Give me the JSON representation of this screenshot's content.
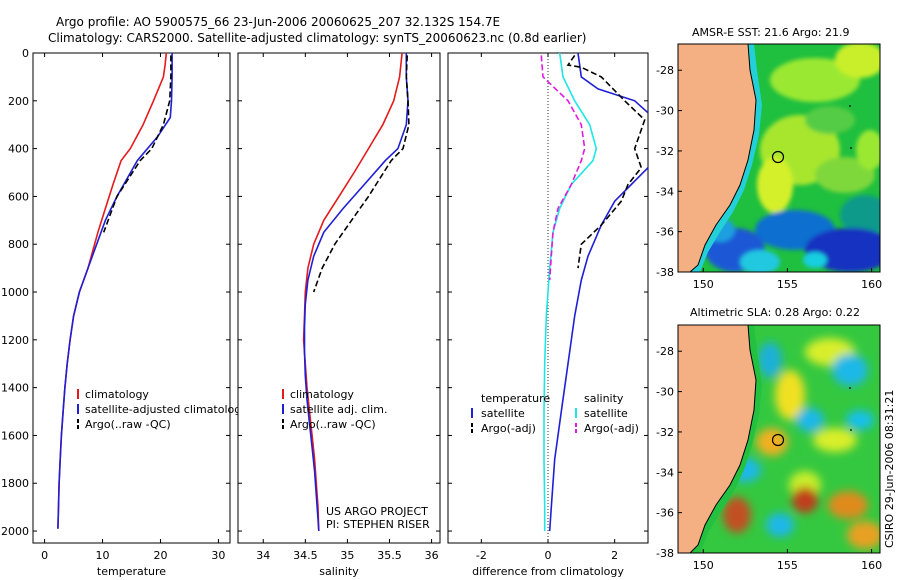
{
  "title_line1": "Argo profile: AO 5900575_66 23-Jun-2006 20060625_207 32.132S 154.7E",
  "title_line2": "Climatology: CARS2000. Satellite-adjusted climatology: synTS_20060623.nc (0.8d earlier)",
  "colors": {
    "climatology": "#e41a1c",
    "satellite": "#1f1fd6",
    "argo": "#000000",
    "argo_adj": "#e01be0",
    "satellite_sal": "#1ee6e6",
    "land": "#f4b083"
  },
  "chart_data": [
    {
      "type": "line",
      "name": "temperature",
      "xlabel": "temperature",
      "ylabel": "",
      "xlim": [
        -2,
        32
      ],
      "ylim": [
        2050,
        0
      ],
      "xticks": [
        0,
        10,
        20,
        30
      ],
      "yticks": [
        0,
        200,
        400,
        600,
        800,
        1000,
        1200,
        1400,
        1600,
        1800,
        2000
      ],
      "legend": [
        "climatology",
        "satellite-adjusted climatology",
        "Argo(..raw -QC)"
      ],
      "legend_position": "lower-right",
      "series": [
        {
          "name": "climatology",
          "color_key": "climatology",
          "dash": false,
          "points": [
            [
              21.0,
              0
            ],
            [
              20.8,
              50
            ],
            [
              20.5,
              100
            ],
            [
              18.8,
              200
            ],
            [
              17.0,
              300
            ],
            [
              14.8,
              400
            ],
            [
              13.2,
              450
            ],
            [
              11.8,
              550
            ],
            [
              10.5,
              650
            ],
            [
              9.2,
              750
            ],
            [
              7.5,
              900
            ],
            [
              6.0,
              1000
            ],
            [
              5.0,
              1100
            ],
            [
              4.4,
              1200
            ],
            [
              3.9,
              1300
            ],
            [
              3.5,
              1400
            ],
            [
              3.2,
              1500
            ],
            [
              2.9,
              1600
            ],
            [
              2.7,
              1700
            ],
            [
              2.5,
              1800
            ],
            [
              2.4,
              1900
            ],
            [
              2.3,
              1990
            ]
          ]
        },
        {
          "name": "satellite-adjusted climatology",
          "color_key": "satellite",
          "dash": false,
          "points": [
            [
              22.0,
              0
            ],
            [
              22.0,
              100
            ],
            [
              21.9,
              200
            ],
            [
              21.7,
              270
            ],
            [
              19.5,
              350
            ],
            [
              16.0,
              450
            ],
            [
              12.5,
              600
            ],
            [
              10.5,
              700
            ],
            [
              9.0,
              800
            ],
            [
              7.5,
              900
            ],
            [
              6.0,
              1000
            ],
            [
              5.0,
              1100
            ],
            [
              4.4,
              1200
            ],
            [
              3.9,
              1300
            ],
            [
              3.5,
              1400
            ],
            [
              3.2,
              1500
            ],
            [
              2.9,
              1600
            ],
            [
              2.7,
              1700
            ],
            [
              2.5,
              1800
            ],
            [
              2.4,
              1900
            ],
            [
              2.3,
              1990
            ]
          ]
        },
        {
          "name": "Argo(..raw -QC)",
          "color_key": "argo",
          "dash": true,
          "points": [
            [
              21.8,
              10
            ],
            [
              21.8,
              100
            ],
            [
              21.6,
              200
            ],
            [
              20.5,
              300
            ],
            [
              18.5,
              400
            ],
            [
              16.5,
              450
            ],
            [
              12.5,
              600
            ],
            [
              10.2,
              750
            ]
          ]
        }
      ],
      "annotation": []
    },
    {
      "type": "line",
      "name": "salinity",
      "xlabel": "salinity",
      "ylabel": "",
      "xlim": [
        33.7,
        36.1
      ],
      "ylim": [
        2050,
        0
      ],
      "xticks": [
        34,
        34.5,
        35,
        35.5,
        36
      ],
      "yticks": [],
      "legend": [
        "climatology",
        "satellite adj. clim.",
        "Argo(..raw -QC)"
      ],
      "legend_position": "lower-right",
      "series": [
        {
          "name": "climatology",
          "color_key": "climatology",
          "dash": false,
          "points": [
            [
              35.65,
              0
            ],
            [
              35.62,
              100
            ],
            [
              35.55,
              200
            ],
            [
              35.42,
              300
            ],
            [
              35.25,
              400
            ],
            [
              35.08,
              500
            ],
            [
              34.9,
              600
            ],
            [
              34.72,
              700
            ],
            [
              34.6,
              800
            ],
            [
              34.53,
              900
            ],
            [
              34.5,
              1000
            ],
            [
              34.49,
              1100
            ],
            [
              34.48,
              1200
            ],
            [
              34.5,
              1300
            ],
            [
              34.52,
              1400
            ],
            [
              34.55,
              1500
            ],
            [
              34.58,
              1600
            ],
            [
              34.61,
              1700
            ],
            [
              34.63,
              1800
            ],
            [
              34.65,
              1900
            ],
            [
              34.66,
              2000
            ]
          ]
        },
        {
          "name": "satellite adj. clim.",
          "color_key": "satellite",
          "dash": false,
          "points": [
            [
              35.7,
              0
            ],
            [
              35.7,
              100
            ],
            [
              35.72,
              200
            ],
            [
              35.7,
              300
            ],
            [
              35.6,
              400
            ],
            [
              35.45,
              450
            ],
            [
              35.2,
              550
            ],
            [
              34.95,
              650
            ],
            [
              34.72,
              750
            ],
            [
              34.6,
              850
            ],
            [
              34.53,
              950
            ],
            [
              34.5,
              1050
            ],
            [
              34.49,
              1150
            ],
            [
              34.49,
              1250
            ],
            [
              34.5,
              1350
            ],
            [
              34.52,
              1450
            ],
            [
              34.55,
              1550
            ],
            [
              34.58,
              1650
            ],
            [
              34.61,
              1750
            ],
            [
              34.63,
              1850
            ],
            [
              34.65,
              1950
            ],
            [
              34.66,
              2000
            ]
          ]
        },
        {
          "name": "Argo(..raw -QC)",
          "color_key": "argo",
          "dash": true,
          "points": [
            [
              35.71,
              10
            ],
            [
              35.7,
              100
            ],
            [
              35.72,
              200
            ],
            [
              35.73,
              300
            ],
            [
              35.66,
              400
            ],
            [
              35.52,
              450
            ],
            [
              35.25,
              600
            ],
            [
              35.05,
              700
            ],
            [
              34.85,
              800
            ],
            [
              34.7,
              900
            ],
            [
              34.6,
              1000
            ]
          ]
        }
      ],
      "annotation": [
        "US ARGO PROJECT",
        "PI: STEPHEN RISER"
      ]
    },
    {
      "type": "line",
      "name": "difference",
      "xlabel": "difference from climatology",
      "ylabel": "",
      "xlim": [
        -3,
        3
      ],
      "ylim": [
        2050,
        0
      ],
      "xticks": [
        -2,
        0,
        2
      ],
      "yticks": [],
      "legend_left_title": "temperature",
      "legend_right_title": "salinity",
      "legend_left": [
        "satellite",
        "Argo(-adj)"
      ],
      "legend_right": [
        "satellite",
        "Argo(-adj)"
      ],
      "legend_position": "lower",
      "series": [
        {
          "name": "temperature satellite",
          "color_key": "satellite",
          "dash": false,
          "points": [
            [
              0.9,
              0
            ],
            [
              1.0,
              100
            ],
            [
              1.5,
              150
            ],
            [
              2.6,
              200
            ],
            [
              3.0,
              250
            ]
          ]
        },
        {
          "name": "temperature satellite deep",
          "color_key": "satellite",
          "dash": false,
          "points": [
            [
              3.0,
              480
            ],
            [
              2.5,
              550
            ],
            [
              2.0,
              620
            ],
            [
              1.6,
              720
            ],
            [
              1.2,
              850
            ],
            [
              1.0,
              950
            ],
            [
              0.8,
              1100
            ],
            [
              0.6,
              1300
            ],
            [
              0.4,
              1500
            ],
            [
              0.2,
              1700
            ],
            [
              0.1,
              1900
            ],
            [
              0.05,
              2000
            ]
          ]
        },
        {
          "name": "temperature Argo(-adj)",
          "color_key": "argo",
          "dash": true,
          "points": [
            [
              0.8,
              10
            ],
            [
              0.6,
              50
            ],
            [
              1.0,
              60
            ],
            [
              1.6,
              100
            ],
            [
              2.3,
              200
            ],
            [
              2.9,
              280
            ],
            [
              2.6,
              400
            ],
            [
              2.8,
              480
            ],
            [
              2.4,
              550
            ],
            [
              2.2,
              620
            ],
            [
              1.6,
              720
            ],
            [
              1.0,
              800
            ],
            [
              0.9,
              900
            ]
          ]
        },
        {
          "name": "salinity satellite",
          "color_key": "satellite_sal",
          "dash": false,
          "points": [
            [
              0.35,
              0
            ],
            [
              0.45,
              100
            ],
            [
              0.8,
              200
            ],
            [
              1.25,
              300
            ],
            [
              1.45,
              400
            ],
            [
              1.35,
              450
            ],
            [
              0.7,
              550
            ],
            [
              0.35,
              650
            ],
            [
              0.15,
              750
            ],
            [
              0.05,
              900
            ],
            [
              -0.05,
              1100
            ],
            [
              -0.1,
              1300
            ],
            [
              -0.12,
              1500
            ],
            [
              -0.12,
              1700
            ],
            [
              -0.1,
              1900
            ],
            [
              -0.1,
              2000
            ]
          ]
        },
        {
          "name": "salinity Argo(-adj)",
          "color_key": "argo_adj",
          "dash": true,
          "points": [
            [
              -0.2,
              10
            ],
            [
              -0.15,
              100
            ],
            [
              0.6,
              200
            ],
            [
              1.0,
              300
            ],
            [
              1.1,
              400
            ],
            [
              1.0,
              450
            ],
            [
              0.7,
              550
            ],
            [
              0.3,
              650
            ],
            [
              0.15,
              750
            ],
            [
              0.1,
              850
            ],
            [
              0.05,
              950
            ]
          ]
        }
      ],
      "annotation": []
    }
  ],
  "maps": [
    {
      "title": "AMSR-E SST: 21.6 Argo: 21.9",
      "xticks": [
        "150",
        "155",
        "160"
      ],
      "yticks": [
        "-28",
        "-30",
        "-32",
        "-34",
        "-36",
        "-38"
      ]
    },
    {
      "title": "Altimetric SLA: 0.28 Argo: 0.22",
      "xticks": [
        "150",
        "155",
        "160"
      ],
      "yticks": [
        "-28",
        "-30",
        "-32",
        "-34",
        "-36",
        "-38"
      ]
    }
  ],
  "side_label": "CSIRO 29-Jun-2006 08:31:21"
}
